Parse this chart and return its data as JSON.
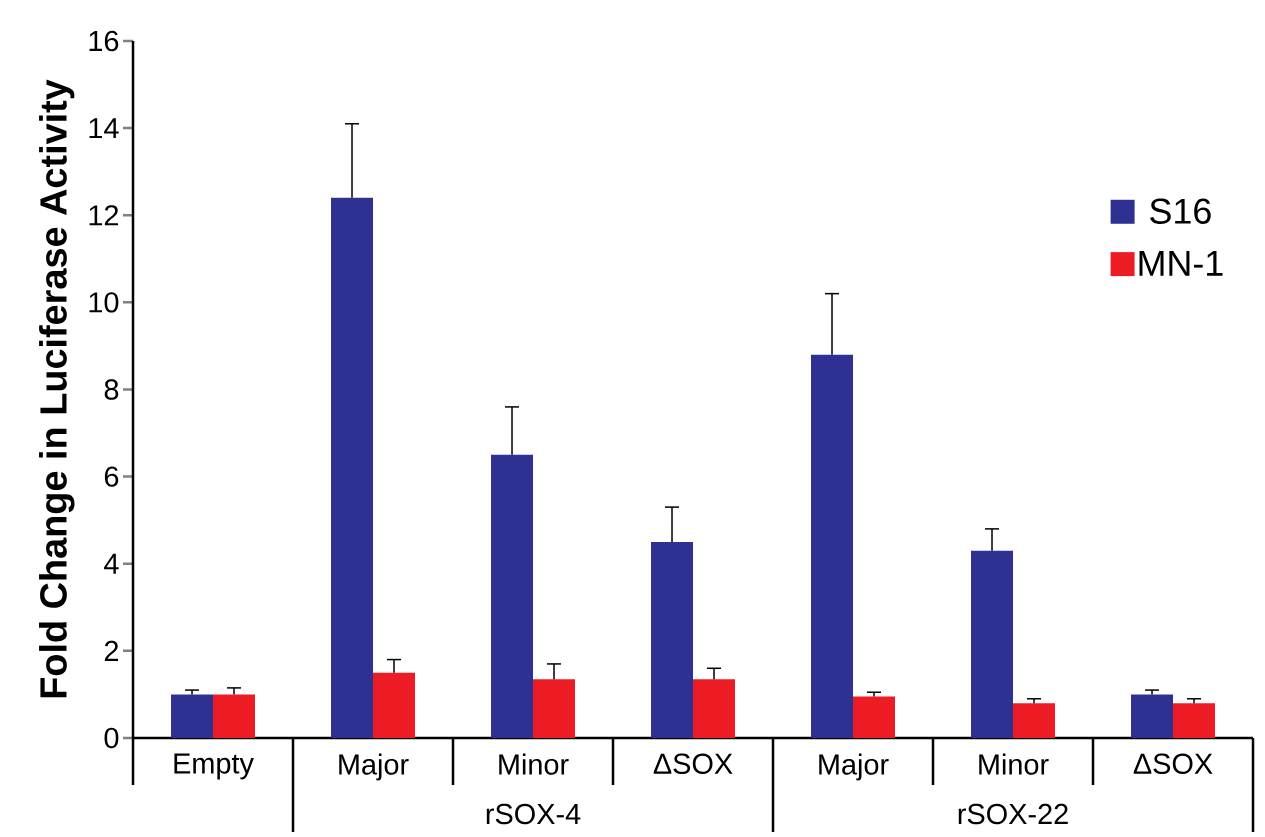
{
  "chart_data": {
    "type": "bar",
    "ylabel": "Fold Change in Luciferase Activity",
    "categories": [
      "Empty",
      "Major",
      "Minor",
      "ΔSOX",
      "Major",
      "Minor",
      "ΔSOX"
    ],
    "series": [
      {
        "name": "S16",
        "color": "#2e3192",
        "values": [
          1.0,
          12.4,
          6.5,
          4.5,
          8.8,
          4.3,
          1.0
        ],
        "errors": [
          [
            1.0,
            1.1
          ],
          [
            12.4,
            14.1
          ],
          [
            6.5,
            7.6
          ],
          [
            4.5,
            5.3
          ],
          [
            8.8,
            10.2
          ],
          [
            4.3,
            4.8
          ],
          [
            1.0,
            1.1
          ]
        ]
      },
      {
        "name": "MN-1",
        "color": "#ed1c24",
        "values": [
          1.0,
          1.5,
          1.35,
          1.35,
          0.95,
          0.8,
          0.8
        ],
        "errors": [
          [
            1.0,
            1.15
          ],
          [
            1.5,
            1.8
          ],
          [
            1.35,
            1.7
          ],
          [
            1.35,
            1.6
          ],
          [
            0.95,
            1.05
          ],
          [
            0.8,
            0.9
          ],
          [
            0.8,
            0.9
          ]
        ]
      }
    ],
    "annotations": [
      "rSOX-4",
      "rSOX-22"
    ],
    "ylim": [
      0,
      16
    ],
    "yticks": [
      0,
      2,
      4,
      6,
      8,
      10,
      12,
      14,
      16
    ],
    "grid": false,
    "legend": "right"
  }
}
